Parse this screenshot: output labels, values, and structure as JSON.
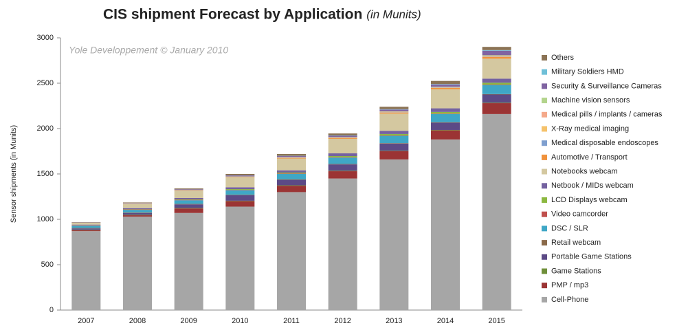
{
  "chart_data": {
    "type": "stacked_bar",
    "title": "CIS shipment Forecast by Application",
    "subtitle": "(in Munits)",
    "annotation": "Yole Developpement © January 2010",
    "y_label": "Sensor shipments (in Munits)",
    "categories": [
      "2007",
      "2008",
      "2009",
      "2010",
      "2011",
      "2012",
      "2013",
      "2014",
      "2015"
    ],
    "ylim": [
      0,
      3000
    ],
    "yticks": [
      0,
      500,
      1000,
      1500,
      2000,
      2500,
      3000
    ],
    "grid": false,
    "legend": "right",
    "series": [
      {
        "name": "Cell-Phone",
        "color": "#a6a6a6",
        "values": [
          870,
          1030,
          1070,
          1140,
          1300,
          1450,
          1660,
          1880,
          2160
        ]
      },
      {
        "name": "PMP / mp3",
        "color": "#9b3434",
        "values": [
          10,
          15,
          50,
          60,
          70,
          80,
          90,
          100,
          120
        ]
      },
      {
        "name": "Game Stations",
        "color": "#6f8f3a",
        "values": [
          5,
          5,
          5,
          5,
          5,
          5,
          5,
          5,
          5
        ]
      },
      {
        "name": "Portable Game Stations",
        "color": "#5c4a86",
        "values": [
          15,
          20,
          40,
          60,
          60,
          70,
          80,
          80,
          90
        ]
      },
      {
        "name": "Retail webcam",
        "color": "#8a6a4a",
        "values": [
          5,
          5,
          5,
          5,
          5,
          5,
          5,
          5,
          5
        ]
      },
      {
        "name": "DSC / SLR",
        "color": "#3fa7c6",
        "values": [
          25,
          30,
          40,
          50,
          60,
          70,
          80,
          90,
          100
        ]
      },
      {
        "name": "Video camcorder",
        "color": "#c0504d",
        "values": [
          5,
          5,
          5,
          5,
          5,
          5,
          5,
          5,
          5
        ]
      },
      {
        "name": "LCD Displays webcam",
        "color": "#8cb840",
        "values": [
          2,
          3,
          5,
          8,
          10,
          12,
          15,
          18,
          20
        ]
      },
      {
        "name": "Netbook / MIDs webcam",
        "color": "#7462a0",
        "values": [
          5,
          10,
          15,
          20,
          25,
          30,
          35,
          40,
          45
        ]
      },
      {
        "name": "Notebooks webcam",
        "color": "#d4c8a0",
        "values": [
          20,
          50,
          80,
          110,
          130,
          160,
          190,
          210,
          220
        ]
      },
      {
        "name": "Automotive / Transport",
        "color": "#f0923c",
        "values": [
          1,
          2,
          3,
          5,
          7,
          10,
          12,
          15,
          20
        ]
      },
      {
        "name": "Medical disposable endoscopes",
        "color": "#7f9fcf",
        "values": [
          0,
          0,
          1,
          1,
          2,
          2,
          3,
          3,
          4
        ]
      },
      {
        "name": "X-Ray medical imaging",
        "color": "#f5c26b",
        "values": [
          0,
          0,
          1,
          1,
          2,
          2,
          3,
          3,
          5
        ]
      },
      {
        "name": "Medical pills / implants / cameras",
        "color": "#f4a98a",
        "values": [
          0,
          0,
          1,
          1,
          2,
          2,
          3,
          3,
          4
        ]
      },
      {
        "name": "Machine vision sensors",
        "color": "#b3d48c",
        "values": [
          1,
          1,
          2,
          2,
          3,
          3,
          4,
          4,
          5
        ]
      },
      {
        "name": "Security & Surveillance Cameras",
        "color": "#8064a2",
        "values": [
          3,
          5,
          8,
          10,
          12,
          15,
          20,
          25,
          50
        ]
      },
      {
        "name": "Military Soldiers HMD",
        "color": "#6fc0d8",
        "values": [
          0,
          0,
          0,
          1,
          2,
          3,
          4,
          5,
          7
        ]
      },
      {
        "name": "Others",
        "color": "#8b7355",
        "values": [
          3,
          5,
          9,
          16,
          20,
          22,
          26,
          34,
          35
        ]
      }
    ]
  }
}
